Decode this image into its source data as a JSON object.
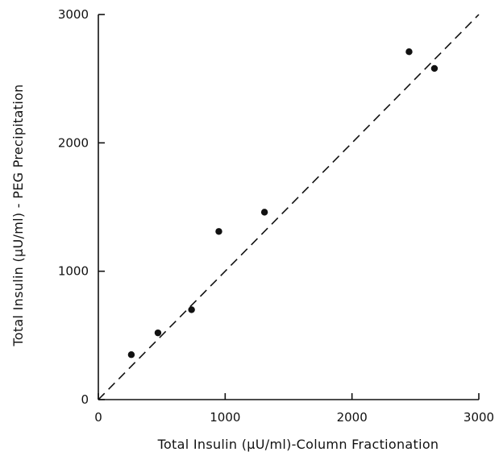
{
  "chart_data": {
    "type": "scatter",
    "title": "",
    "xlabel": "Total Insulin (μU/ml)-Column Fractionation",
    "ylabel": "Total Insulin (μU/ml) - PEG Precipitation",
    "xlim": [
      0,
      3000
    ],
    "ylim": [
      0,
      3000
    ],
    "xticks": [
      0,
      1000,
      2000,
      3000
    ],
    "yticks": [
      0,
      1000,
      2000,
      3000
    ],
    "xtick_labels": [
      "0",
      "1000",
      "2000",
      "3000"
    ],
    "ytick_labels": [
      "0",
      "1000",
      "2000",
      "3000"
    ],
    "grid": false,
    "reference_line": {
      "style": "dashed",
      "from": [
        0,
        0
      ],
      "to": [
        3000,
        3000
      ]
    },
    "points": [
      {
        "x": 260,
        "y": 350
      },
      {
        "x": 470,
        "y": 520
      },
      {
        "x": 735,
        "y": 700
      },
      {
        "x": 950,
        "y": 1310
      },
      {
        "x": 1310,
        "y": 1460
      },
      {
        "x": 2450,
        "y": 2710
      },
      {
        "x": 2650,
        "y": 2580
      }
    ],
    "colors": {
      "ink": "#111111"
    }
  }
}
